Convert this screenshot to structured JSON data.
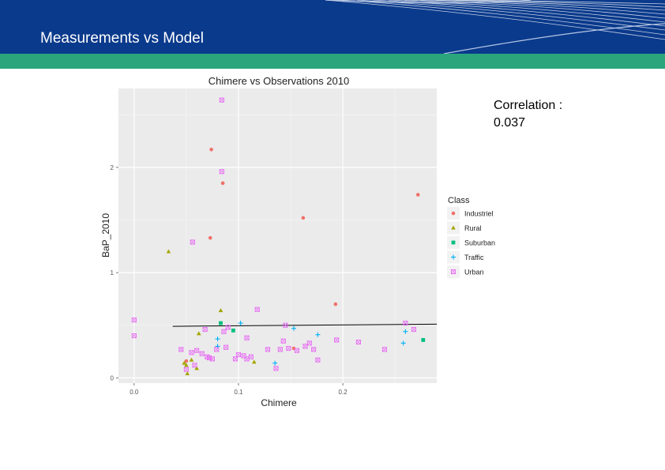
{
  "slide": {
    "title": "Measurements vs Model",
    "correlation_label": "Correlation :",
    "correlation_value": "0.037"
  },
  "colors": {
    "header_blue": "#0a3a8c",
    "band_green": "#2aa57c",
    "panel_bg": "#ebebeb",
    "Industriel": "#f07068",
    "Rural": "#a3a500",
    "Suburban": "#00bf7d",
    "Traffic": "#00b0f6",
    "Urban": "#e76bf3"
  },
  "chart_data": {
    "type": "scatter",
    "title": "Chimere vs Observations 2010",
    "xlabel": "Chimere",
    "ylabel": "BaP_2010",
    "xlim": [
      -0.015,
      0.29
    ],
    "ylim": [
      -0.05,
      2.75
    ],
    "x_ticks": [
      {
        "value": 0.0,
        "label": "0.0"
      },
      {
        "value": 0.1,
        "label": "0.1"
      },
      {
        "value": 0.2,
        "label": "0.2"
      }
    ],
    "y_ticks": [
      {
        "value": 0,
        "label": "0"
      },
      {
        "value": 1,
        "label": "1"
      },
      {
        "value": 2,
        "label": "2"
      }
    ],
    "grid": true,
    "legend": {
      "title": "Class",
      "placement": "right",
      "items": [
        "Industriel",
        "Rural",
        "Suburban",
        "Traffic",
        "Urban"
      ]
    },
    "fit_line": {
      "x": [
        0.037,
        0.29
      ],
      "y": [
        0.49,
        0.51
      ]
    },
    "series": [
      {
        "name": "Industriel",
        "marker": "circle",
        "x": [
          0.074,
          0.085,
          0.073,
          0.162,
          0.193,
          0.272,
          0.05,
          0.153
        ],
        "y": [
          2.17,
          1.85,
          1.33,
          1.52,
          0.7,
          1.74,
          0.16,
          0.28
        ]
      },
      {
        "name": "Rural",
        "marker": "triangle",
        "x": [
          0.033,
          0.083,
          0.062,
          0.05,
          0.055,
          0.048,
          0.06,
          0.115,
          0.051
        ],
        "y": [
          1.2,
          0.64,
          0.42,
          0.12,
          0.17,
          0.14,
          0.09,
          0.15,
          0.04
        ]
      },
      {
        "name": "Suburban",
        "marker": "square",
        "x": [
          0.083,
          0.095,
          0.277
        ],
        "y": [
          0.52,
          0.45,
          0.36
        ]
      },
      {
        "name": "Traffic",
        "marker": "plus",
        "x": [
          0.102,
          0.176,
          0.08,
          0.135,
          0.26,
          0.08,
          0.153,
          0.258
        ],
        "y": [
          0.52,
          0.41,
          0.3,
          0.14,
          0.44,
          0.37,
          0.47,
          0.33
        ]
      },
      {
        "name": "Urban",
        "marker": "boxx",
        "x": [
          0.084,
          0.084,
          0.056,
          0.118,
          0.0,
          0.0,
          0.045,
          0.055,
          0.065,
          0.07,
          0.075,
          0.088,
          0.097,
          0.108,
          0.128,
          0.148,
          0.168,
          0.194,
          0.215,
          0.24,
          0.26,
          0.268,
          0.068,
          0.09,
          0.108,
          0.14,
          0.156,
          0.164,
          0.172,
          0.176,
          0.112,
          0.136,
          0.072,
          0.05,
          0.1,
          0.145,
          0.058,
          0.079,
          0.06,
          0.105,
          0.086,
          0.143
        ],
        "y": [
          2.64,
          1.96,
          1.29,
          0.65,
          0.55,
          0.4,
          0.27,
          0.24,
          0.23,
          0.2,
          0.18,
          0.29,
          0.18,
          0.18,
          0.27,
          0.28,
          0.33,
          0.36,
          0.34,
          0.27,
          0.52,
          0.46,
          0.46,
          0.48,
          0.38,
          0.27,
          0.26,
          0.3,
          0.27,
          0.17,
          0.2,
          0.09,
          0.19,
          0.08,
          0.22,
          0.5,
          0.12,
          0.27,
          0.26,
          0.21,
          0.44,
          0.35
        ]
      }
    ]
  }
}
